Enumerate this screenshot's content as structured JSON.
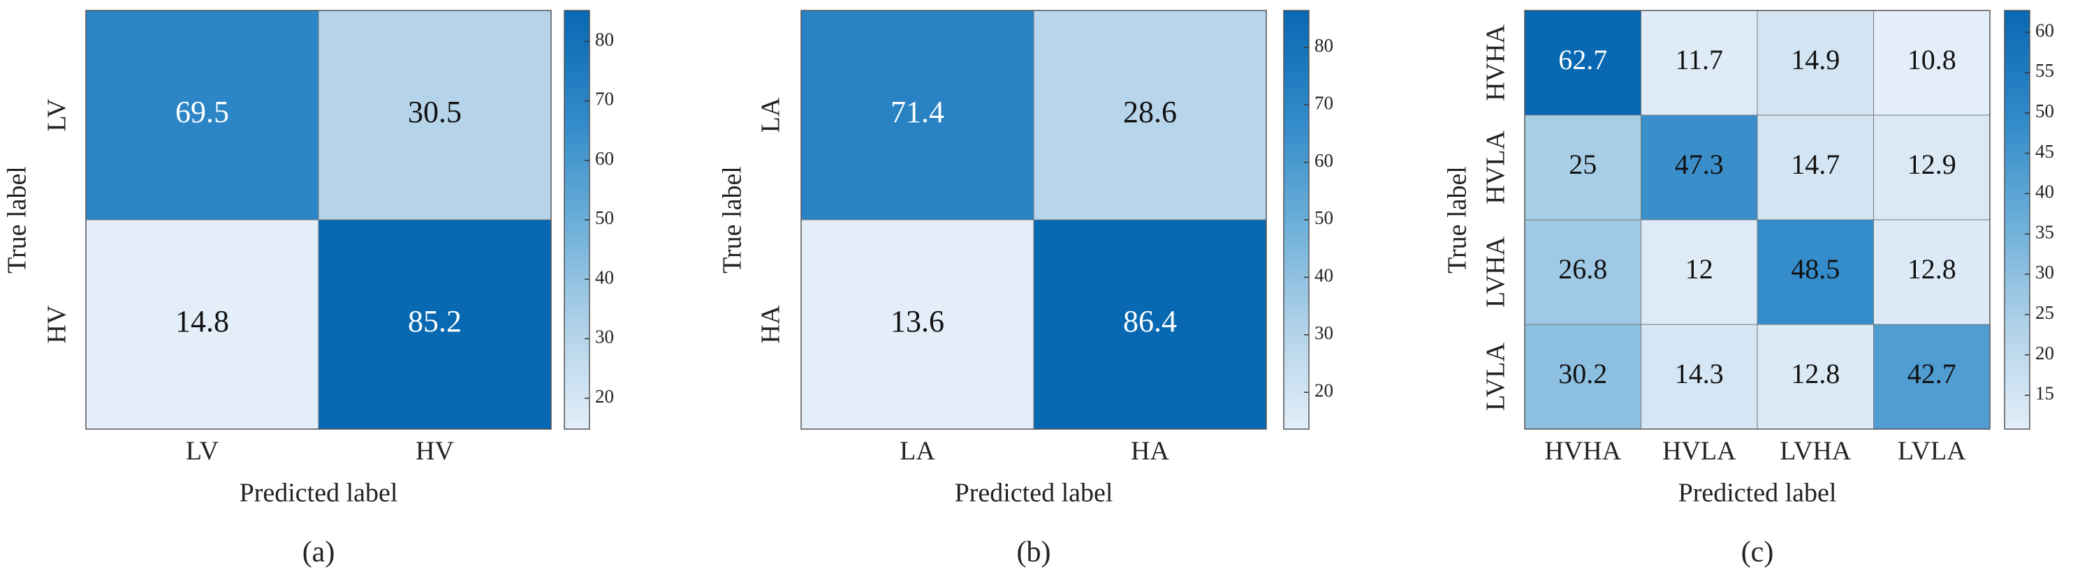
{
  "chart_data": [
    {
      "type": "heatmap",
      "caption": "(a)",
      "xlabel": "Predicted label",
      "ylabel": "True label",
      "x_categories": [
        "LV",
        "HV"
      ],
      "y_categories": [
        "LV",
        "HV"
      ],
      "values": [
        [
          69.5,
          30.5
        ],
        [
          14.8,
          85.2
        ]
      ],
      "clim": [
        14.8,
        85.2
      ],
      "cticks": [
        20,
        30,
        40,
        50,
        60,
        70,
        80
      ],
      "colormap": [
        "#e3eef8",
        "#afd1e8",
        "#6aaed8",
        "#2f88c8",
        "#0868b2"
      ]
    },
    {
      "type": "heatmap",
      "caption": "(b)",
      "xlabel": "Predicted label",
      "ylabel": "True label",
      "x_categories": [
        "LA",
        "HA"
      ],
      "y_categories": [
        "LA",
        "HA"
      ],
      "values": [
        [
          71.4,
          28.6
        ],
        [
          13.6,
          86.4
        ]
      ],
      "clim": [
        13.6,
        86.4
      ],
      "cticks": [
        20,
        30,
        40,
        50,
        60,
        70,
        80
      ],
      "colormap": [
        "#e3eef8",
        "#afd1e8",
        "#6aaed8",
        "#2f88c8",
        "#0868b2"
      ]
    },
    {
      "type": "heatmap",
      "caption": "(c)",
      "xlabel": "Predicted label",
      "ylabel": "True label",
      "x_categories": [
        "HVHA",
        "HVLA",
        "LVHA",
        "LVLA"
      ],
      "y_categories": [
        "HVHA",
        "HVLA",
        "LVHA",
        "LVLA"
      ],
      "values": [
        [
          62.7,
          11.7,
          14.9,
          10.8
        ],
        [
          25,
          47.3,
          14.7,
          12.9
        ],
        [
          26.8,
          12,
          48.5,
          12.8
        ],
        [
          30.2,
          14.3,
          12.8,
          42.7
        ]
      ],
      "clim": [
        10.8,
        62.7
      ],
      "cticks": [
        15,
        20,
        25,
        30,
        35,
        40,
        45,
        50,
        55,
        60
      ],
      "colormap": [
        "#e3eef8",
        "#afd1e8",
        "#6aaed8",
        "#2f88c8",
        "#0868b2"
      ]
    }
  ]
}
